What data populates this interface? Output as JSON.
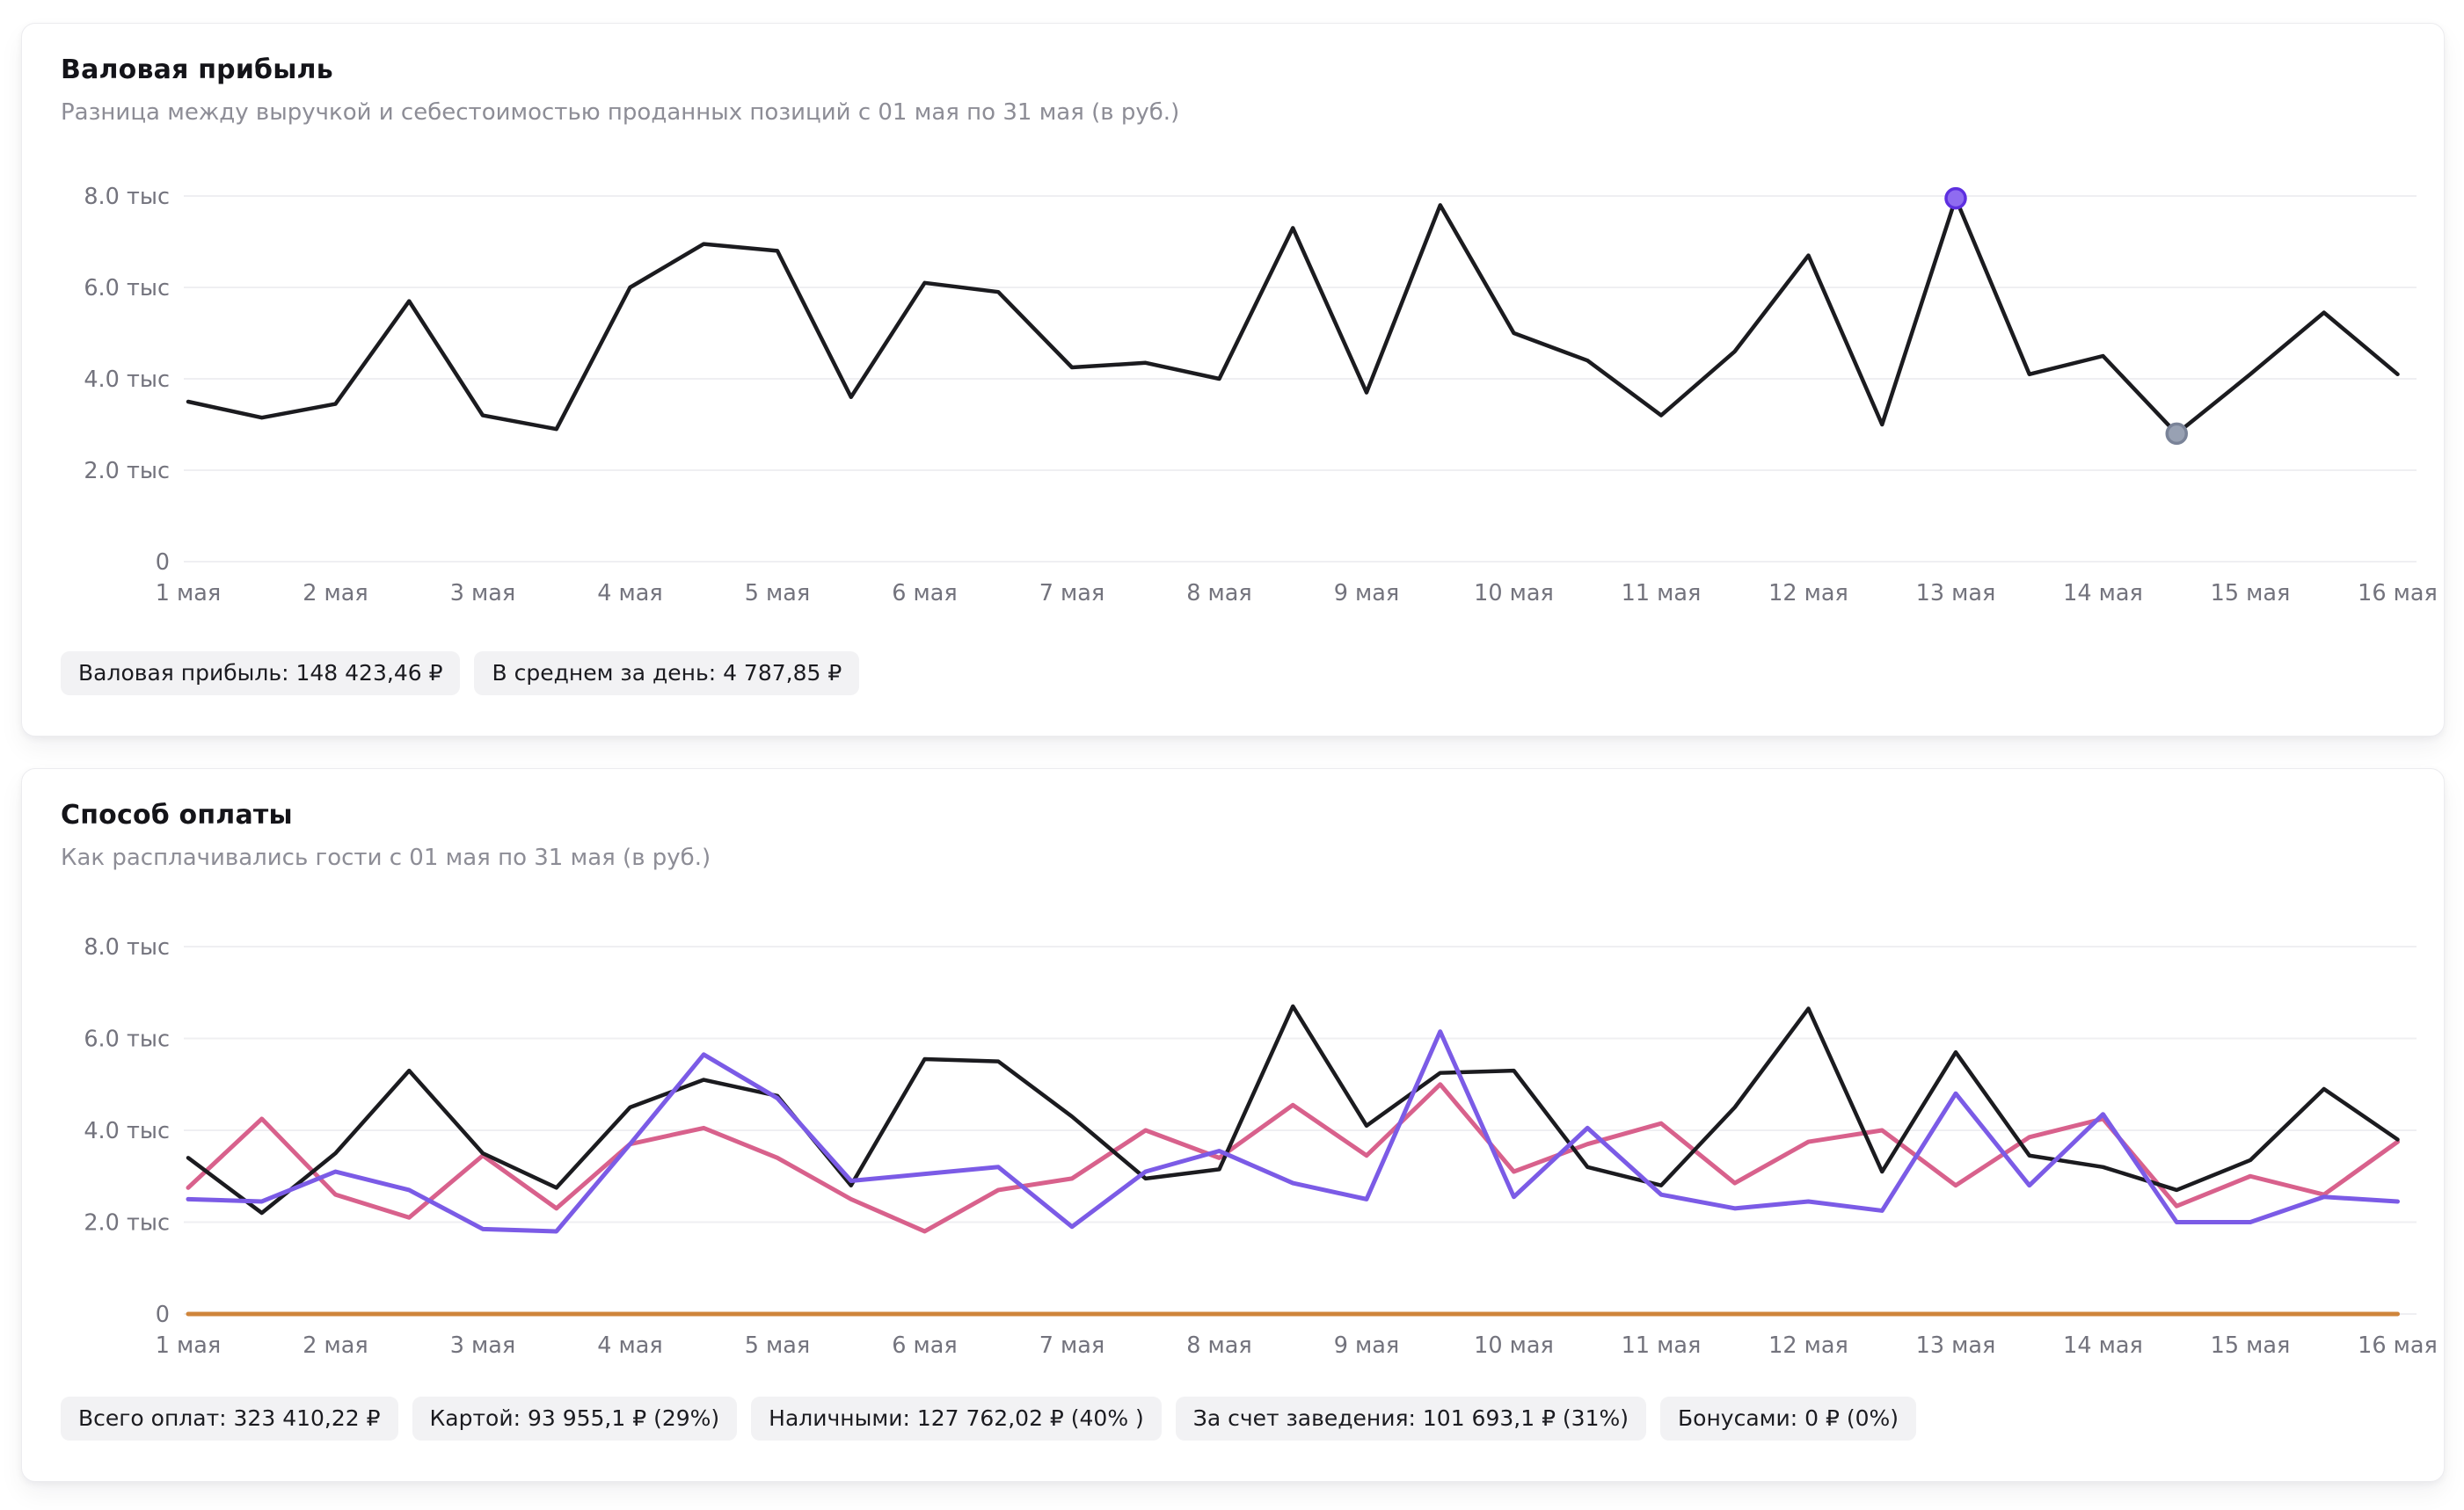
{
  "charts": [
    {
      "title": "Валовая прибыль",
      "subtitle": "Разница между выручкой и себестоимостью проданных позиций с 01 мая по 31 мая (в руб.)",
      "badges": [
        "Валовая прибыль: 148 423,46 ₽",
        "В среднем за день: 4 787,85 ₽"
      ],
      "chart_data": {
        "type": "line",
        "unit": "тыс руб",
        "ylim": [
          0,
          8
        ],
        "grid": true,
        "y_ticks": [
          {
            "v": 8,
            "label": "8.0 тыс"
          },
          {
            "v": 6,
            "label": "6.0 тыс"
          },
          {
            "v": 4,
            "label": "4.0 тыс"
          },
          {
            "v": 2,
            "label": "2.0 тыс"
          },
          {
            "v": 0,
            "label": "0"
          }
        ],
        "x_labels": [
          "1 мая",
          "2 мая",
          "3 мая",
          "4 мая",
          "5 мая",
          "6 мая",
          "7 мая",
          "8 мая",
          "9 мая",
          "10 мая",
          "11 мая",
          "12 мая",
          "13 мая",
          "14 мая",
          "15 мая",
          "16 мая"
        ],
        "series": [
          {
            "name": "Валовая прибыль",
            "color": "#1b1b1f",
            "width": 4.5,
            "values": [
              3.5,
              3.15,
              3.45,
              5.7,
              3.2,
              2.9,
              6.0,
              6.95,
              6.8,
              3.6,
              6.1,
              5.9,
              4.25,
              4.35,
              4.0,
              7.3,
              3.7,
              7.8,
              5.0,
              4.4,
              3.2,
              4.6,
              6.7,
              3.0,
              7.95,
              4.1,
              4.5,
              2.8,
              4.1,
              5.45,
              4.1
            ]
          }
        ],
        "markers": [
          {
            "series": 0,
            "index": 24,
            "kind": "max-point",
            "fill": "#8f6cf0",
            "ring": "#5d2fe0"
          },
          {
            "series": 0,
            "index": 27,
            "kind": "min-point",
            "fill": "#98a1b3",
            "ring": "#7a8398"
          }
        ]
      }
    },
    {
      "title": "Способ оплаты",
      "subtitle": "Как расплачивались гости с 01 мая по 31 мая (в руб.)",
      "badges": [
        "Всего оплат: 323 410,22 ₽",
        "Картой: 93 955,1 ₽ (29%)",
        "Наличными: 127 762,02 ₽ (40% )",
        "За счет заведения: 101 693,1 ₽ (31%)",
        "Бонусами: 0 ₽ (0%)"
      ],
      "chart_data": {
        "type": "line",
        "unit": "тыс руб",
        "ylim": [
          0,
          8
        ],
        "grid": true,
        "y_ticks": [
          {
            "v": 8,
            "label": "8.0 тыс"
          },
          {
            "v": 6,
            "label": "6.0 тыс"
          },
          {
            "v": 4,
            "label": "4.0 тыс"
          },
          {
            "v": 2,
            "label": "2.0 тыс"
          },
          {
            "v": 0,
            "label": "0"
          }
        ],
        "x_labels": [
          "1 мая",
          "2 мая",
          "3 мая",
          "4 мая",
          "5 мая",
          "6 мая",
          "7 мая",
          "8 мая",
          "9 мая",
          "10 мая",
          "11 мая",
          "12 мая",
          "13 мая",
          "14 мая",
          "15 мая",
          "16 мая"
        ],
        "series": [
          {
            "name": "Бонусами",
            "color": "#cf853b",
            "width": 5,
            "values": [
              0,
              0,
              0,
              0,
              0,
              0,
              0,
              0,
              0,
              0,
              0,
              0,
              0,
              0,
              0,
              0,
              0,
              0,
              0,
              0,
              0,
              0,
              0,
              0,
              0,
              0,
              0,
              0,
              0,
              0,
              0
            ]
          },
          {
            "name": "За счет заведения",
            "color": "#d8618c",
            "width": 5,
            "values": [
              2.75,
              4.25,
              2.6,
              2.1,
              3.45,
              2.3,
              3.7,
              4.05,
              3.4,
              2.5,
              1.8,
              2.7,
              2.95,
              4.0,
              3.4,
              4.55,
              3.45,
              5.0,
              3.1,
              3.7,
              4.15,
              2.85,
              3.75,
              4.0,
              2.8,
              3.85,
              4.25,
              2.35,
              3.0,
              2.6,
              3.75
            ]
          },
          {
            "name": "Наличными",
            "color": "#1b1b1f",
            "width": 4.5,
            "values": [
              3.4,
              2.2,
              3.5,
              5.3,
              3.5,
              2.75,
              4.5,
              5.1,
              4.75,
              2.8,
              5.55,
              5.5,
              4.3,
              2.95,
              3.15,
              6.7,
              4.1,
              5.25,
              5.3,
              3.2,
              2.8,
              4.5,
              6.65,
              3.1,
              5.7,
              3.45,
              3.2,
              2.7,
              3.35,
              4.9,
              3.8
            ]
          },
          {
            "name": "Картой",
            "color": "#7b5be6",
            "width": 5,
            "values": [
              2.5,
              2.45,
              3.1,
              2.7,
              1.85,
              1.8,
              3.7,
              5.65,
              4.7,
              2.9,
              3.05,
              3.2,
              1.9,
              3.1,
              3.55,
              2.85,
              2.5,
              6.15,
              2.55,
              4.05,
              2.6,
              2.3,
              2.45,
              2.25,
              4.8,
              2.8,
              4.35,
              2.0,
              2.0,
              2.55,
              2.45
            ]
          }
        ],
        "markers": []
      }
    }
  ]
}
